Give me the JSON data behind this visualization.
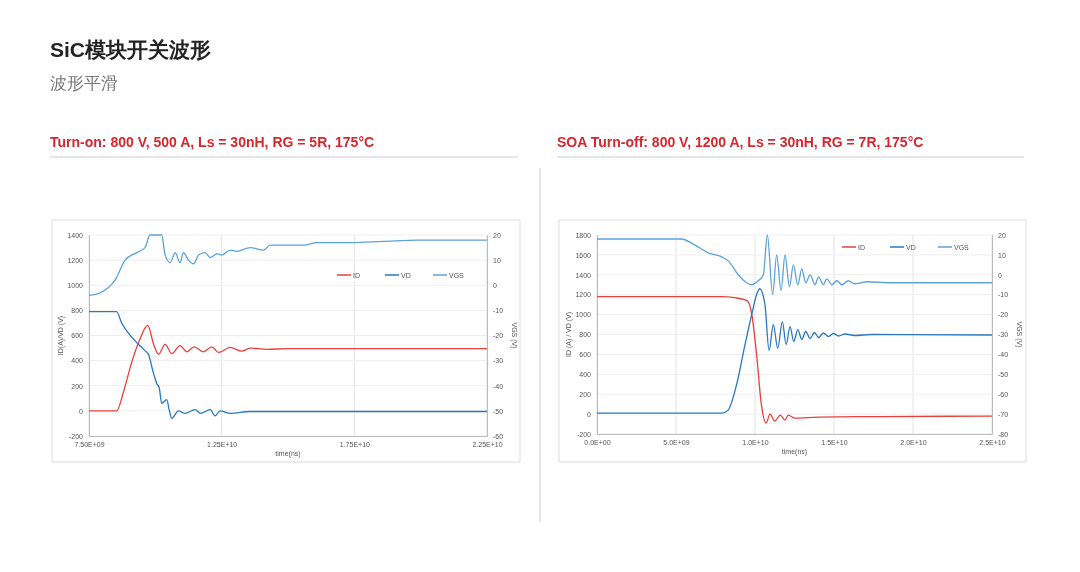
{
  "chart_data": [
    {
      "type": "line",
      "title": "Turn-on: 800 V, 500 A, Ls = 30nH, RG = 5R, 175°C",
      "annotations": [
        "SiC模块开关波形",
        "波形平滑"
      ],
      "xlabel": "time(ns)",
      "ylabel": "ID(A)/VD (V)",
      "y2label": "VGS (V)",
      "xlim": [
        7500000000.0,
        22500000000.0
      ],
      "xticks": [
        {
          "value": 7500000000.0,
          "label": "7.50E+09"
        },
        {
          "value": 12500000000.0,
          "label": "1.25E+10"
        },
        {
          "value": 17500000000.0,
          "label": "1.75E+10"
        },
        {
          "value": 22500000000.0,
          "label": "2.25E+10"
        }
      ],
      "ylim": [
        -200,
        1400
      ],
      "yticks": [
        -200,
        0,
        200,
        400,
        600,
        800,
        1000,
        1200,
        1400
      ],
      "y2lim": [
        -60,
        20
      ],
      "y2ticks": [
        -60,
        -50,
        -40,
        -30,
        -20,
        -10,
        0,
        10,
        20
      ],
      "grid": true,
      "legend": "top right",
      "series": [
        {
          "name": "ID",
          "color": "#e8413c",
          "x": [
            7500000000.0,
            8540000000.0,
            8800000000.0,
            9100000000.0,
            9400000000.0,
            9710000000.0,
            9950000000.0,
            10120000000.0,
            10370000000.0,
            10620000000.0,
            10930000000.0,
            11190000000.0,
            11460000000.0,
            11810000000.0,
            12130000000.0,
            12380000000.0,
            12820000000.0,
            13260000000.0,
            13580000000.0,
            14200000000.0,
            15000000000.0,
            22500000000.0
          ],
          "values": [
            0,
            0,
            150,
            380,
            560,
            680,
            520,
            450,
            530,
            455,
            520,
            470,
            510,
            470,
            510,
            465,
            505,
            475,
            500,
            490,
            495,
            495
          ]
        },
        {
          "name": "VD",
          "color": "#2a78c2",
          "x": [
            7500000000.0,
            8540000000.0,
            8730000000.0,
            8980000000.0,
            9360000000.0,
            9610000000.0,
            9740000000.0,
            9930000000.0,
            10050000000.0,
            10150000000.0,
            10240000000.0,
            10430000000.0,
            10530000000.0,
            10620000000.0,
            10870000000.0,
            11120000000.0,
            11500000000.0,
            11700000000.0,
            12070000000.0,
            12250000000.0,
            12440000000.0,
            12820000000.0,
            13580000000.0,
            22500000000.0
          ],
          "values": [
            790,
            790,
            700,
            620,
            530,
            480,
            450,
            300,
            220,
            180,
            60,
            90,
            0,
            -60,
            0,
            -20,
            10,
            -20,
            10,
            -40,
            0,
            -20,
            -5,
            -5
          ]
        },
        {
          "name": "VGS",
          "color": "#5ba3d9",
          "axis": "y2",
          "x": [
            7500000000.0,
            7920000000.0,
            8480000000.0,
            8860000000.0,
            9300000000.0,
            9610000000.0,
            9800000000.0,
            10240000000.0,
            10370000000.0,
            10560000000.0,
            10750000000.0,
            10930000000.0,
            11060000000.0,
            11250000000.0,
            11440000000.0,
            11630000000.0,
            11880000000.0,
            12070000000.0,
            12320000000.0,
            12510000000.0,
            12820000000.0,
            13070000000.0,
            13580000000.0,
            14080000000.0,
            14330000000.0,
            15600000000.0,
            16100000000.0,
            17350000000.0,
            18600000000.0,
            19900000000.0,
            22500000000.0
          ],
          "values": [
            -4,
            -3,
            2,
            10,
            13,
            15,
            20,
            20,
            12,
            9,
            13,
            9,
            13,
            10,
            8.5,
            12,
            13,
            11,
            12.5,
            12,
            14,
            13.5,
            15,
            14,
            16,
            16,
            17,
            17,
            17.5,
            18,
            18
          ]
        }
      ]
    },
    {
      "type": "line",
      "title": "SOA Turn-off: 800 V, 1200 A, Ls = 30nH, RG = 7R, 175°C",
      "xlabel": "time(ns)",
      "ylabel": "ID (A) / VD (V)",
      "y2label": "VGS (V)",
      "xlim": [
        0,
        25000000000.0
      ],
      "xticks": [
        {
          "value": 0,
          "label": "0.0E+00"
        },
        {
          "value": 5000000000.0,
          "label": "5.0E+09"
        },
        {
          "value": 10000000000.0,
          "label": "1.0E+10"
        },
        {
          "value": 15000000000.0,
          "label": "1.5E+10"
        },
        {
          "value": 20000000000.0,
          "label": "2.0E+10"
        },
        {
          "value": 25000000000.0,
          "label": "2.5E+10"
        }
      ],
      "ylim": [
        -200,
        1800
      ],
      "yticks": [
        -200,
        0,
        200,
        400,
        600,
        800,
        1000,
        1200,
        1400,
        1600,
        1800
      ],
      "y2lim": [
        -80,
        20
      ],
      "y2ticks": [
        -80,
        -70,
        -60,
        -50,
        -40,
        -30,
        -20,
        -10,
        0,
        10,
        20
      ],
      "grid": true,
      "legend": "top right",
      "series": [
        {
          "name": "ID",
          "color": "#e8413c",
          "x": [
            0,
            7900000000.0,
            8700000000.0,
            9500000000.0,
            9800000000.0,
            10100000000.0,
            10400000000.0,
            10700000000.0,
            10950000000.0,
            11250000000.0,
            11600000000.0,
            11900000000.0,
            12100000000.0,
            12500000000.0,
            14000000000.0,
            18000000000.0,
            25000000000.0
          ],
          "values": [
            1180,
            1180,
            1170,
            1140,
            1000,
            600,
            100,
            -90,
            0,
            -70,
            -10,
            -60,
            -10,
            -40,
            -30,
            -25,
            -20
          ]
        },
        {
          "name": "VD",
          "color": "#2a78c2",
          "x": [
            0,
            7900000000.0,
            8300000000.0,
            8840000000.0,
            9370000000.0,
            9790000000.0,
            10100000000.0,
            10300000000.0,
            10630000000.0,
            10890000000.0,
            11160000000.0,
            11440000000.0,
            11730000000.0,
            11970000000.0,
            12220000000.0,
            12450000000.0,
            12710000000.0,
            12960000000.0,
            13210000000.0,
            13490000000.0,
            13760000000.0,
            14020000000.0,
            14330000000.0,
            14650000000.0,
            14970000000.0,
            15280000000.0,
            15700000000.0,
            16300000000.0,
            17400000000.0,
            25000000000.0
          ],
          "values": [
            10,
            10,
            40,
            300,
            700,
            1000,
            1200,
            1260,
            1100,
            640,
            900,
            660,
            930,
            700,
            880,
            730,
            850,
            750,
            830,
            760,
            820,
            770,
            815,
            780,
            810,
            785,
            805,
            790,
            800,
            795
          ]
        },
        {
          "name": "VGS",
          "color": "#5ba3d9",
          "axis": "y2",
          "x": [
            0,
            5350000000.0,
            6190000000.0,
            7040000000.0,
            7890000000.0,
            8310000000.0,
            8940000000.0,
            9470000000.0,
            9790000000.0,
            10210000000.0,
            10530000000.0,
            10780000000.0,
            11120000000.0,
            11370000000.0,
            11650000000.0,
            11900000000.0,
            12180000000.0,
            12430000000.0,
            12710000000.0,
            12960000000.0,
            13210000000.0,
            13490000000.0,
            13800000000.0,
            14020000000.0,
            14330000000.0,
            14540000000.0,
            14860000000.0,
            15180000000.0,
            15500000000.0,
            15900000000.0,
            16300000000.0,
            17100000000.0,
            18400000000.0,
            25000000000.0
          ],
          "values": [
            18,
            18,
            15,
            11,
            9,
            7,
            0,
            -4,
            -5,
            -3,
            0,
            20,
            -10,
            10,
            -8,
            10,
            -6,
            5,
            -5,
            3,
            -4,
            0,
            -5,
            -1,
            -5,
            -2,
            -5,
            -3,
            -5,
            -3,
            -4.5,
            -3.5,
            -4,
            -4
          ]
        }
      ]
    }
  ]
}
